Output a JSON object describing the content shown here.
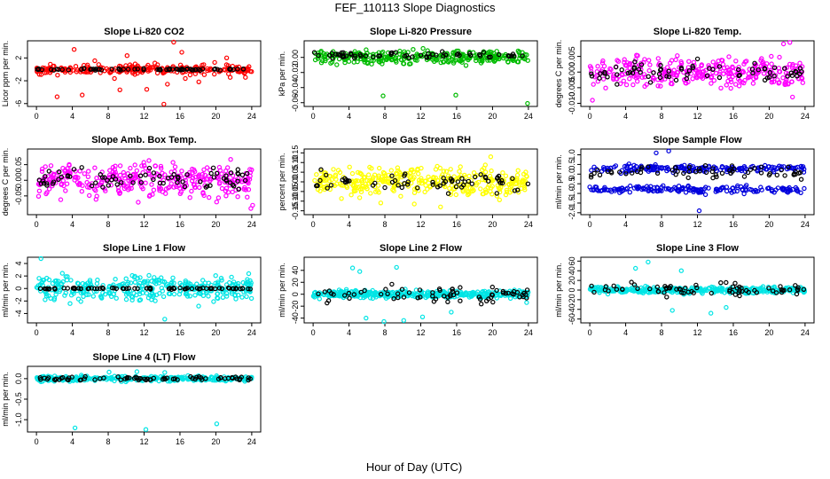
{
  "figure": {
    "title": "FEF_110113  Slope Diagnostics",
    "xlabel": "Hour of Day (UTC)"
  },
  "chart_data": [
    {
      "type": "scatter",
      "title": "Slope Li-820 CO2",
      "ylabel": "Licor ppm per min.",
      "xlim": [
        -1,
        25
      ],
      "ylim": [
        -6.5,
        5
      ],
      "xticks": [
        "0",
        "4",
        "8",
        "12",
        "16",
        "20",
        "24"
      ],
      "yticks": [
        -6,
        -2,
        2
      ],
      "ytick_labels": [
        "-6",
        "-2",
        "2"
      ],
      "colors": {
        "main": "#ff0000",
        "flag": "#000000"
      },
      "series": {
        "main": {
          "band": [
            0,
            0.8
          ],
          "n": 260,
          "outliers": [
            [
              2.3,
              -4.8
            ],
            [
              4.2,
              3.5
            ],
            [
              5.1,
              -4.5
            ],
            [
              6.5,
              1.5
            ],
            [
              8.7,
              -1.6
            ],
            [
              9.3,
              -3.6
            ],
            [
              10.1,
              2.4
            ],
            [
              12.3,
              -3.5
            ],
            [
              13.2,
              1.1
            ],
            [
              14.2,
              -6.1
            ],
            [
              14.6,
              -2.6
            ],
            [
              15.3,
              4.8
            ],
            [
              16.2,
              3.0
            ],
            [
              16.6,
              -1.6
            ],
            [
              18.1,
              -2.2
            ],
            [
              21.2,
              2.0
            ],
            [
              21.6,
              -1.4
            ],
            [
              23.3,
              -1.4
            ]
          ]
        },
        "flag": {
          "band": [
            0,
            0.15
          ],
          "n": 70
        }
      }
    },
    {
      "type": "scatter",
      "title": "Slope Li-820 Pressure",
      "ylabel": "kPa per min.",
      "xlim": [
        -1,
        25
      ],
      "ylim": [
        -0.065,
        0.022
      ],
      "xticks": [
        "0",
        "4",
        "8",
        "12",
        "16",
        "20",
        "24"
      ],
      "yticks": [
        -0.06,
        -0.04,
        -0.02,
        0
      ],
      "ytick_labels": [
        "-0.06",
        "-0.04",
        "-0.02",
        "0.00"
      ],
      "colors": {
        "main": "#00bb00",
        "flag": "#000000"
      },
      "series": {
        "main": {
          "band": [
            0,
            0.009
          ],
          "n": 300,
          "outliers": [
            [
              7.8,
              -0.051
            ],
            [
              15.9,
              -0.05
            ],
            [
              23.9,
              -0.061
            ]
          ]
        },
        "flag": {
          "band": [
            0.003,
            0.004
          ],
          "n": 60
        }
      }
    },
    {
      "type": "scatter",
      "title": "Slope Li-820 Temp.",
      "ylabel": "degrees C per min.",
      "xlim": [
        -1,
        25
      ],
      "ylim": [
        -0.011,
        0.01
      ],
      "xticks": [
        "0",
        "4",
        "8",
        "12",
        "16",
        "20",
        "24"
      ],
      "yticks": [
        -0.01,
        -0.005,
        0,
        0.005
      ],
      "ytick_labels": [
        "-0.010",
        "-0.005",
        "0.000",
        "0.005"
      ],
      "colors": {
        "main": "#ff00ff",
        "flag": "#000000"
      },
      "series": {
        "main": {
          "band": [
            0,
            0.0045
          ],
          "n": 320,
          "outliers": [
            [
              0.3,
              -0.009
            ],
            [
              21.6,
              0.009
            ],
            [
              22.3,
              0.0095
            ],
            [
              22.6,
              -0.008
            ]
          ]
        },
        "flag": {
          "band": [
            0,
            0.003
          ],
          "n": 70
        }
      }
    },
    {
      "type": "scatter",
      "title": "Slope Amb. Box Temp.",
      "ylabel": "degrees C per min.",
      "xlim": [
        -1,
        25
      ],
      "ylim": [
        -0.11,
        0.1
      ],
      "xticks": [
        "0",
        "4",
        "8",
        "12",
        "16",
        "20",
        "24"
      ],
      "yticks": [
        -0.05,
        0,
        0.05
      ],
      "ytick_labels": [
        "-0.05",
        "0.00",
        "0.05"
      ],
      "colors": {
        "main": "#ff00ff",
        "flag": "#000000"
      },
      "series": {
        "main": {
          "band": [
            0,
            0.05
          ],
          "n": 330,
          "outliers": [
            [
              23.9,
              -0.09
            ],
            [
              24.1,
              -0.08
            ]
          ]
        },
        "flag": {
          "band": [
            0,
            0.035
          ],
          "n": 75
        }
      }
    },
    {
      "type": "scatter",
      "title": "Slope Gas Stream RH",
      "ylabel": "percent per min.",
      "xlim": [
        -1,
        25
      ],
      "ylim": [
        -0.17,
        0.17
      ],
      "xticks": [
        "0",
        "4",
        "8",
        "12",
        "16",
        "20",
        "24"
      ],
      "yticks": [
        -0.15,
        -0.1,
        -0.05,
        0,
        0.05,
        0.1,
        0.15
      ],
      "ytick_labels": [
        "-0.15",
        "-0.10",
        "-0.05",
        "0.00",
        "0.05",
        "0.10",
        "0.15"
      ],
      "colors": {
        "main": "#ffff00",
        "flag": "#000000"
      },
      "series": {
        "main": {
          "band": [
            0,
            0.075
          ],
          "n": 340,
          "outliers": [
            [
              14.2,
              -0.13
            ],
            [
              19.8,
              0.13
            ]
          ]
        },
        "flag": {
          "band": [
            0,
            0.05
          ],
          "n": 65
        }
      }
    },
    {
      "type": "scatter",
      "title": "Slope Sample Flow",
      "ylabel": "ml/min per min.",
      "xlim": [
        -1,
        25
      ],
      "ylim": [
        -2.1,
        1.3
      ],
      "xticks": [
        "0",
        "4",
        "8",
        "12",
        "16",
        "20",
        "24"
      ],
      "yticks": [
        -2,
        -1.5,
        -1,
        -0.5,
        0,
        0.5,
        1
      ],
      "ytick_labels": [
        "-2.0",
        "-1.5",
        "-1.0",
        "-0.5",
        "0.0",
        "0.5",
        "1.0"
      ],
      "colors": {
        "main": "#0000dd",
        "flag": "#000000"
      },
      "series": {
        "main": {
          "bands": [
            [
              0.3,
              0.18
            ],
            [
              -0.8,
              0.18
            ]
          ],
          "band": [
            0,
            0.5
          ],
          "n": 360,
          "outliers": [
            [
              7.4,
              1.1
            ],
            [
              8.8,
              1.2
            ],
            [
              12.2,
              -1.9
            ]
          ]
        },
        "flag": {
          "band": [
            0.1,
            0.3
          ],
          "n": 60
        }
      }
    },
    {
      "type": "scatter",
      "title": "Slope Line 1 Flow",
      "ylabel": "ml/min per min.",
      "xlim": [
        -1,
        25
      ],
      "ylim": [
        -5.5,
        5
      ],
      "xticks": [
        "0",
        "4",
        "8",
        "12",
        "16",
        "20",
        "24"
      ],
      "yticks": [
        -4,
        -2,
        0,
        2,
        4
      ],
      "ytick_labels": [
        "-4",
        "-2",
        "0",
        "2",
        "4"
      ],
      "colors": {
        "main": "#00e5e5",
        "flag": "#000000"
      },
      "series": {
        "main": {
          "band": [
            0,
            2.0
          ],
          "n": 330,
          "outliers": [
            [
              0.5,
              4.8
            ],
            [
              14.3,
              -4.9
            ]
          ]
        },
        "flag": {
          "band": [
            0,
            0.12
          ],
          "n": 75
        }
      }
    },
    {
      "type": "scatter",
      "title": "Slope Line 2 Flow",
      "ylabel": "ml/min per min.",
      "xlim": [
        -1,
        25
      ],
      "ylim": [
        -48,
        62
      ],
      "xticks": [
        "0",
        "4",
        "8",
        "12",
        "16",
        "20",
        "24"
      ],
      "yticks": [
        -40,
        -20,
        0,
        20,
        40
      ],
      "ytick_labels": [
        "-40",
        "-20",
        "0",
        "20",
        "40"
      ],
      "colors": {
        "main": "#00e5e5",
        "flag": "#000000"
      },
      "series": {
        "main": {
          "band": [
            0,
            6
          ],
          "n": 380,
          "outliers": [
            [
              4.4,
              44
            ],
            [
              5.2,
              38
            ],
            [
              5.9,
              -40
            ],
            [
              7.9,
              -46
            ],
            [
              9.3,
              45
            ],
            [
              10.1,
              -44
            ],
            [
              12.2,
              -38
            ],
            [
              15.4,
              -30
            ],
            [
              23.8,
              -14
            ]
          ]
        },
        "flag": {
          "band": [
            0,
            14
          ],
          "n": 70
        }
      }
    },
    {
      "type": "scatter",
      "title": "Slope Line 3 Flow",
      "ylabel": "ml/min per min.",
      "xlim": [
        -1,
        25
      ],
      "ylim": [
        -68,
        68
      ],
      "xticks": [
        "0",
        "4",
        "8",
        "12",
        "16",
        "20",
        "24"
      ],
      "yticks": [
        -60,
        -40,
        -20,
        0,
        20,
        40,
        60
      ],
      "ytick_labels": [
        "-60",
        "-40",
        "-20",
        "0",
        "20",
        "40",
        "60"
      ],
      "colors": {
        "main": "#00e5e5",
        "flag": "#000000"
      },
      "series": {
        "main": {
          "band": [
            0,
            6
          ],
          "n": 380,
          "outliers": [
            [
              5.1,
              45
            ],
            [
              6.5,
              58
            ],
            [
              9.2,
              -42
            ],
            [
              10.2,
              40
            ],
            [
              13.5,
              -48
            ],
            [
              15.2,
              -36
            ]
          ]
        },
        "flag": {
          "band": [
            0,
            15
          ],
          "n": 70
        }
      }
    },
    {
      "type": "scatter",
      "title": "Slope Line 4 (LT) Flow",
      "ylabel": "ml/min per min.",
      "xlim": [
        -1,
        25
      ],
      "ylim": [
        -1.3,
        0.3
      ],
      "xticks": [
        "0",
        "4",
        "8",
        "12",
        "16",
        "20",
        "24"
      ],
      "yticks": [
        -1,
        -0.5,
        0
      ],
      "ytick_labels": [
        "-1.0",
        "-0.5",
        "0.0"
      ],
      "colors": {
        "main": "#00e5e5",
        "flag": "#000000"
      },
      "series": {
        "main": {
          "band": [
            0,
            0.06
          ],
          "n": 320,
          "outliers": [
            [
              4.3,
              -1.2
            ],
            [
              12.2,
              -1.24
            ],
            [
              20.1,
              -1.1
            ],
            [
              8.1,
              0.16
            ],
            [
              11.2,
              0.17
            ],
            [
              14.3,
              0.15
            ]
          ]
        },
        "flag": {
          "band": [
            0,
            0.05
          ],
          "n": 70
        }
      }
    }
  ]
}
